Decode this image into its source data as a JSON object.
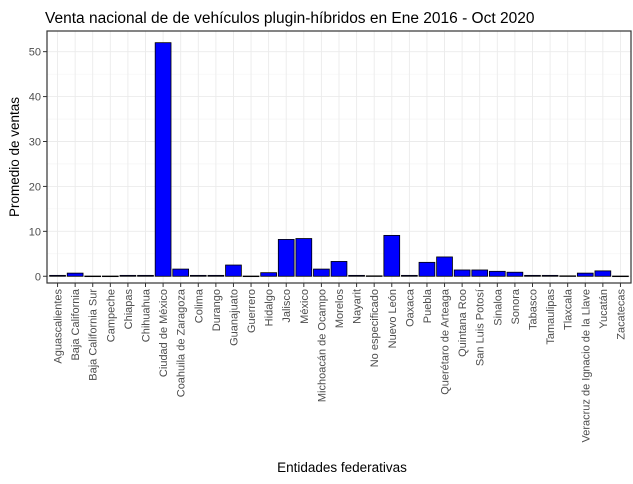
{
  "chart_data": {
    "type": "bar",
    "title": "Venta nacional de de vehículos plugin-híbridos en Ene 2016 - Oct 2020",
    "xlabel": "Entidades federativas",
    "ylabel": "Promedio de ventas",
    "ylim": [
      -1.5,
      54.6
    ],
    "yticks": [
      0,
      10,
      20,
      30,
      40,
      50
    ],
    "grid": true,
    "bar_color": "#0000ff",
    "bar_border_color": "#000000",
    "categories": [
      "Aguascalientes",
      "Baja California",
      "Baja California Sur",
      "Campeche",
      "Chiapas",
      "Chihuahua",
      "Ciudad de México",
      "Coahuila de Zaragoza",
      "Colima",
      "Durango",
      "Guanajuato",
      "Guerrero",
      "Hidalgo",
      "Jalisco",
      "México",
      "Michoacán de Ocampo",
      "Morelos",
      "Nayarit",
      "No especificado",
      "Nuevo León",
      "Oaxaca",
      "Puebla",
      "Querétaro de Arteaga",
      "Quintana Roo",
      "San Luis Potosí",
      "Sinaloa",
      "Sonora",
      "Tabasco",
      "Tamaulipas",
      "Tlaxcala",
      "Veracruz de Ignacio de la Llave",
      "Yucatán",
      "Zacatecas"
    ],
    "values": [
      0.2,
      0.7,
      0.05,
      0.05,
      0.2,
      0.2,
      52.0,
      1.6,
      0.2,
      0.2,
      2.5,
      0.05,
      0.8,
      8.2,
      8.4,
      1.6,
      3.3,
      0.2,
      0.1,
      9.1,
      0.2,
      3.1,
      4.3,
      1.4,
      1.4,
      1.1,
      0.9,
      0.2,
      0.2,
      0.1,
      0.7,
      1.2,
      0.05
    ]
  }
}
